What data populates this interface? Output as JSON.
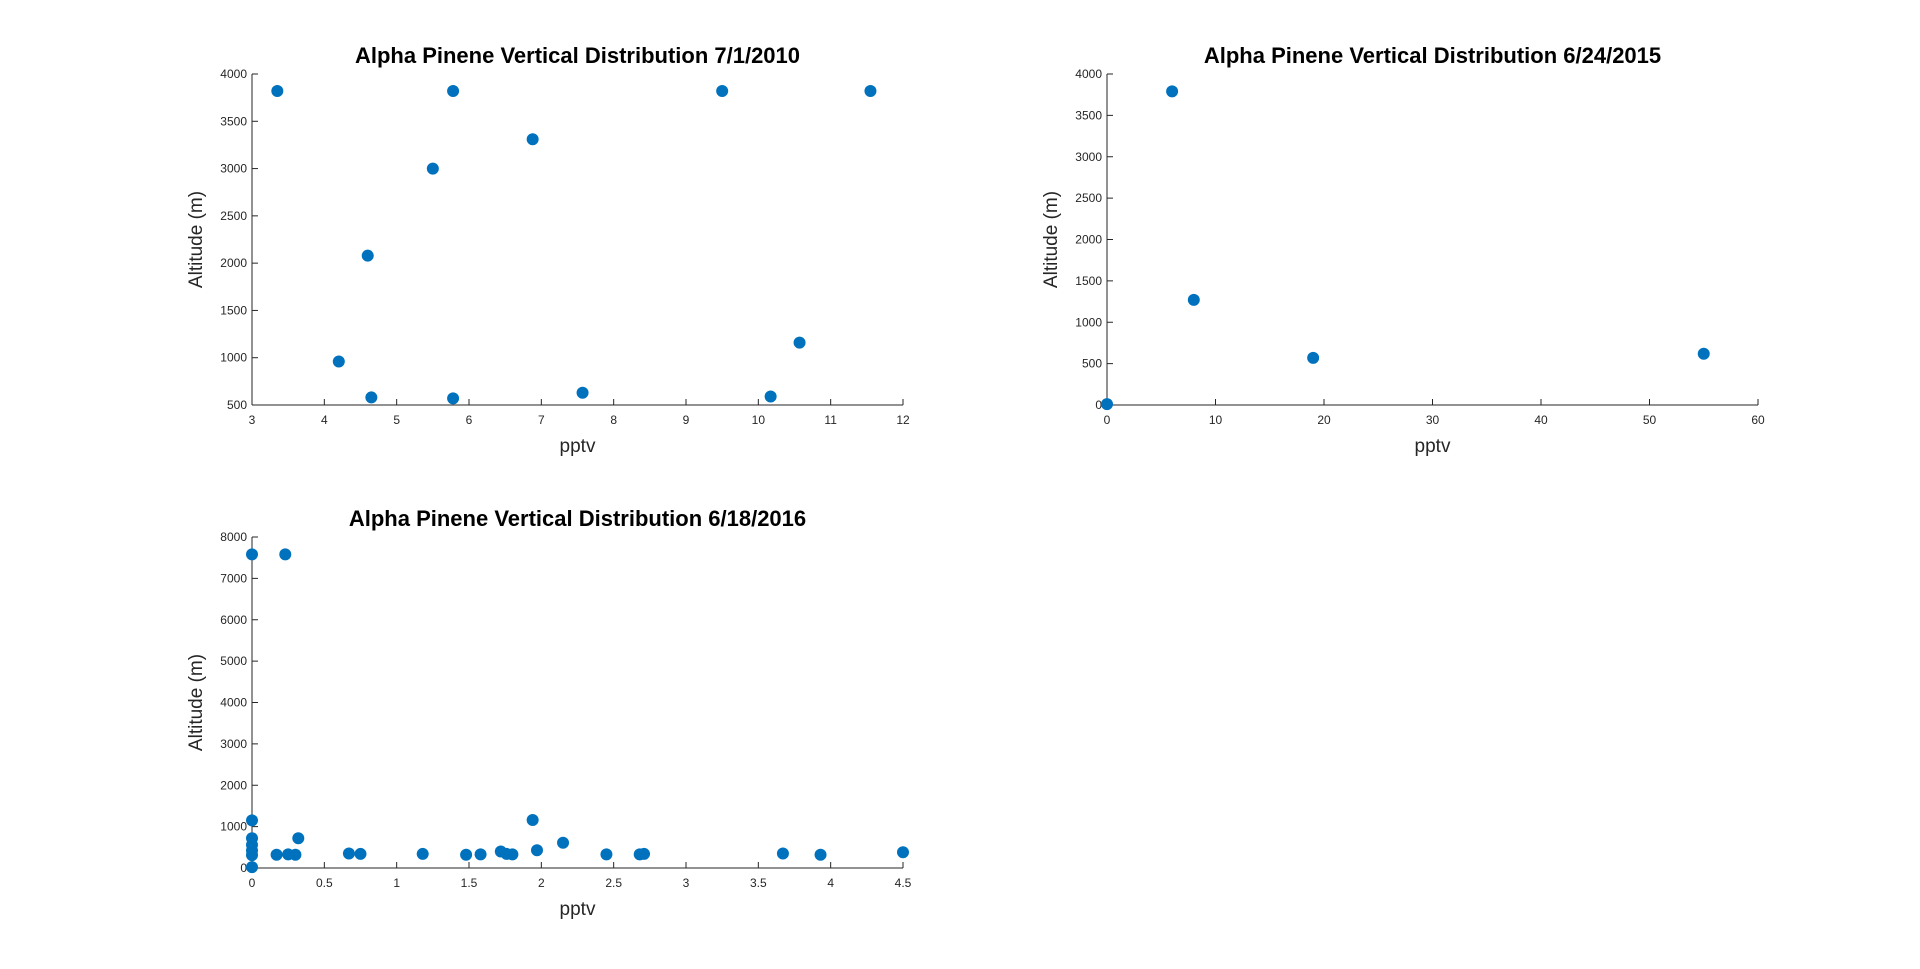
{
  "chart_data": [
    {
      "type": "scatter",
      "title": "Alpha Pinene Vertical Distribution 7/1/2010",
      "xlabel": "pptv",
      "ylabel": "Altitude (m)",
      "xlim": [
        3,
        12
      ],
      "ylim": [
        500,
        4000
      ],
      "xticks": [
        3,
        4,
        5,
        6,
        7,
        8,
        9,
        10,
        11,
        12
      ],
      "yticks": [
        500,
        1000,
        1500,
        2000,
        2500,
        3000,
        3500,
        4000
      ],
      "grid": false,
      "marker_color": "#0072BD",
      "series": [
        {
          "x": [
            3.35,
            5.78,
            9.5,
            11.55,
            6.88,
            5.5,
            4.6,
            4.2,
            10.57,
            7.57,
            4.65,
            5.78,
            10.17
          ],
          "y": [
            3820,
            3820,
            3820,
            3820,
            3310,
            3000,
            2080,
            960,
            1160,
            630,
            580,
            570,
            590
          ]
        }
      ]
    },
    {
      "type": "scatter",
      "title": "Alpha Pinene Vertical Distribution 6/24/2015",
      "xlabel": "pptv",
      "ylabel": "Altitude (m)",
      "xlim": [
        0,
        60
      ],
      "ylim": [
        0,
        4000
      ],
      "xticks": [
        0,
        10,
        20,
        30,
        40,
        50,
        60
      ],
      "yticks": [
        0,
        500,
        1000,
        1500,
        2000,
        2500,
        3000,
        3500,
        4000
      ],
      "grid": false,
      "marker_color": "#0072BD",
      "series": [
        {
          "x": [
            0,
            6,
            8,
            19,
            55
          ],
          "y": [
            10,
            3790,
            1270,
            570,
            620
          ]
        }
      ]
    },
    {
      "type": "scatter",
      "title": "Alpha Pinene Vertical Distribution 6/18/2016",
      "xlabel": "pptv",
      "ylabel": "Altitude (m)",
      "xlim": [
        0,
        4.5
      ],
      "ylim": [
        0,
        8000
      ],
      "xticks": [
        0,
        0.5,
        1,
        1.5,
        2,
        2.5,
        3,
        3.5,
        4,
        4.5
      ],
      "yticks": [
        0,
        1000,
        2000,
        3000,
        4000,
        5000,
        6000,
        7000,
        8000
      ],
      "grid": false,
      "marker_color": "#0072BD",
      "series": [
        {
          "x": [
            0,
            0.23,
            0,
            0,
            0,
            0,
            0,
            0,
            0.17,
            0.25,
            0.3,
            0.32,
            0.67,
            0.75,
            1.18,
            1.48,
            1.58,
            1.72,
            1.76,
            1.8,
            1.94,
            1.97,
            2.15,
            2.45,
            2.68,
            2.71,
            3.67,
            3.93,
            4.5
          ],
          "y": [
            7580,
            7580,
            1150,
            720,
            560,
            420,
            310,
            20,
            320,
            330,
            320,
            720,
            350,
            340,
            340,
            320,
            330,
            400,
            340,
            330,
            1160,
            430,
            610,
            330,
            330,
            340,
            350,
            320,
            380
          ]
        }
      ]
    }
  ]
}
